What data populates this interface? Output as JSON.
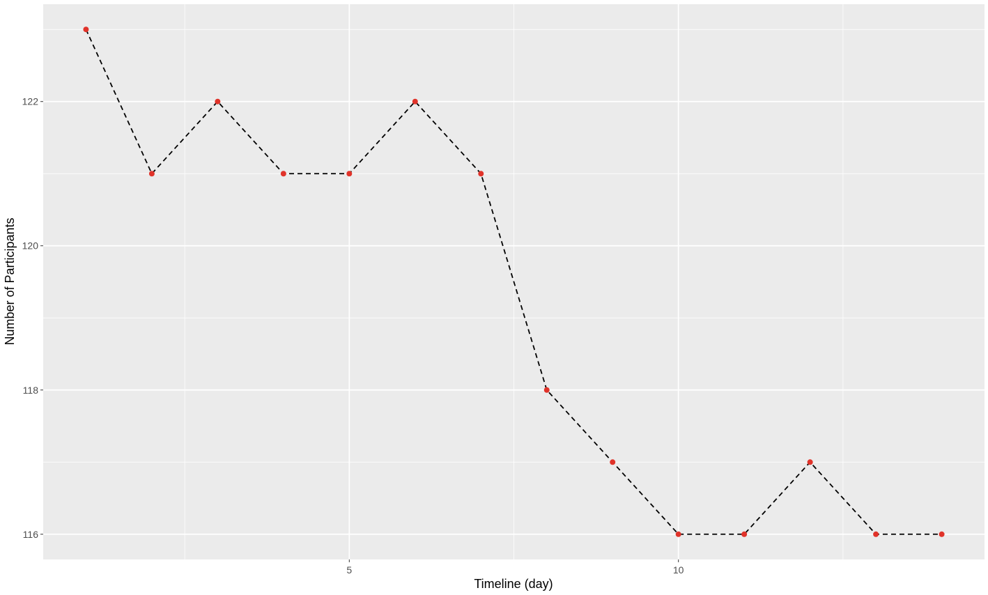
{
  "chart_data": {
    "type": "line",
    "title": "",
    "xlabel": "Timeline (day)",
    "ylabel": "Number of Participants",
    "x": [
      1,
      2,
      3,
      4,
      5,
      6,
      7,
      8,
      9,
      10,
      11,
      12,
      13,
      14
    ],
    "series": [
      {
        "values": [
          123,
          121,
          122,
          121,
          121,
          122,
          121,
          118,
          117,
          116,
          116,
          117,
          116,
          116
        ],
        "line_style": "dashed",
        "line_color": "#000000",
        "point_color": "#e0332a"
      }
    ],
    "xlim": [
      0.35,
      14.65
    ],
    "ylim": [
      115.65,
      123.35
    ],
    "x_ticks": [
      5,
      10
    ],
    "x_tick_labels": [
      "5",
      "10"
    ],
    "y_ticks": [
      116,
      118,
      120,
      122
    ],
    "y_tick_labels": [
      "116",
      "118",
      "120",
      "122"
    ],
    "x_minor_ticks": [
      2.5,
      7.5,
      12.5
    ],
    "y_minor_ticks": [
      117,
      119,
      121,
      123
    ],
    "grid": true,
    "panel_background": "#ebebeb",
    "grid_color": "#ffffff",
    "legend": "none"
  }
}
